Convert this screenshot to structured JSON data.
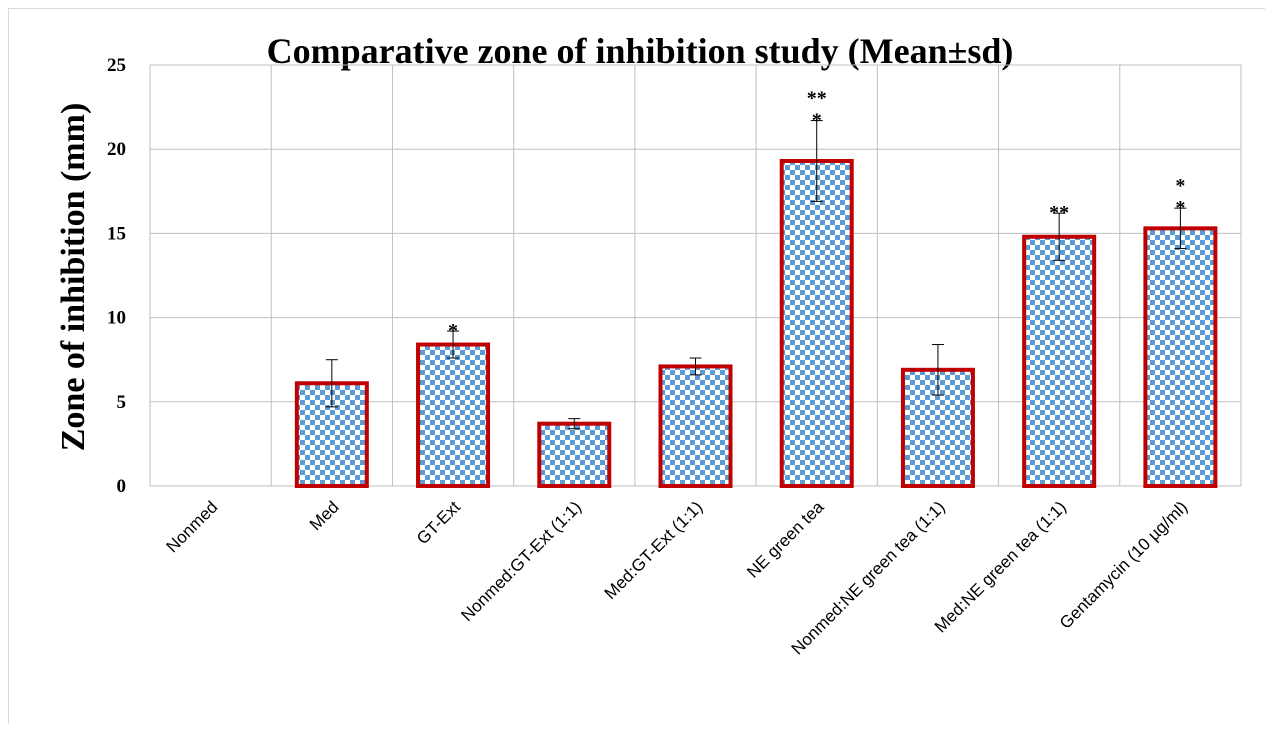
{
  "chart_data": {
    "type": "bar",
    "title": "Comparative zone of inhibition study (Mean±sd)",
    "xlabel": "",
    "ylabel": "Zone of inhibition (mm)",
    "ylim": [
      0,
      25
    ],
    "yticks": [
      "0",
      "5",
      "10",
      "15",
      "20",
      "25"
    ],
    "grid": true,
    "categories": [
      "Nonmed",
      "Med",
      "GT-Ext",
      "Nonmed:GT-Ext (1:1)",
      "Med:GT-Ext (1:1)",
      "NE green tea",
      "Nonmed:NE green tea (1:1)",
      "Med:NE green tea (1:1)",
      "Gentamycin (10 µg/ml)"
    ],
    "values": [
      0,
      6.1,
      8.4,
      3.7,
      7.1,
      19.3,
      6.9,
      14.8,
      15.3
    ],
    "errors": [
      0,
      1.4,
      0.8,
      0.3,
      0.5,
      2.4,
      1.5,
      1.4,
      1.2
    ],
    "significance": [
      "",
      "",
      "*",
      "",
      "",
      "**|*",
      "",
      "**",
      "*|*"
    ],
    "colors": {
      "fill": "#5b9bd5",
      "fill_alt": "#ffffff",
      "border": "#c00000",
      "grid": "#bfbfbf",
      "text": "#000000"
    }
  }
}
